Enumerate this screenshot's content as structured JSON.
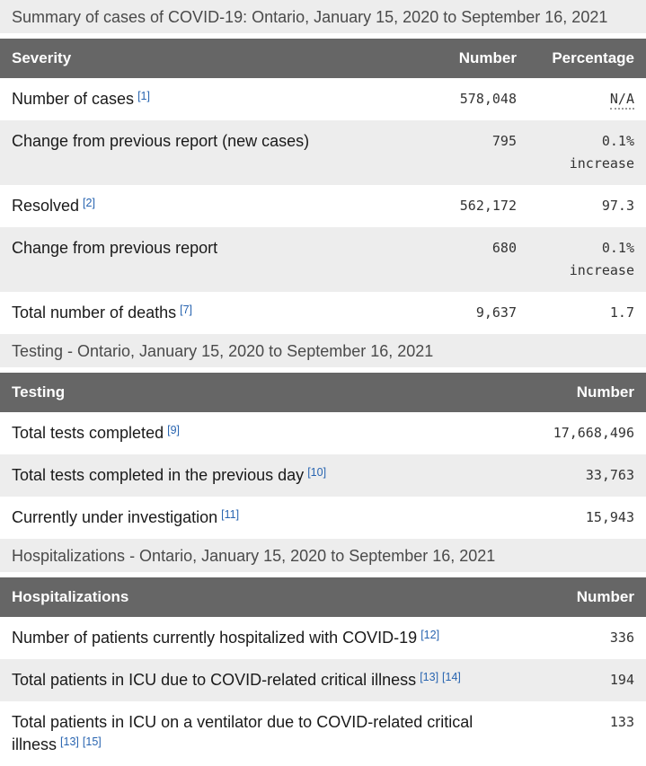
{
  "page": {
    "title": "Summary of cases of COVID-19"
  },
  "colors": {
    "header_bg": "#666666",
    "header_text": "#ffffff",
    "caption_bg": "#ededed",
    "zebra_row_bg": "#ededed",
    "link_blue": "#2864b0",
    "label_text": "#1a1a1a",
    "number_text": "#333333"
  },
  "tables": [
    {
      "caption": "Summary of cases of COVID-19: Ontario, January 15, 2020 to September 16, 2021",
      "columns": [
        "Severity",
        "Number",
        "Percentage"
      ],
      "rows": [
        {
          "label": "Number of cases",
          "footnotes": [
            "[1]"
          ],
          "number": "578,048",
          "percentage": "N/A",
          "percentage_abbr": true
        },
        {
          "label": "Change from previous report (new cases)",
          "footnotes": [],
          "number": "795",
          "percentage": "0.1% increase",
          "percentage_abbr": false
        },
        {
          "label": "Resolved",
          "footnotes": [
            "[2]"
          ],
          "number": "562,172",
          "percentage": "97.3",
          "percentage_abbr": false
        },
        {
          "label": "Change from previous report",
          "footnotes": [],
          "number": "680",
          "percentage": "0.1% increase",
          "percentage_abbr": false
        },
        {
          "label": "Total number of deaths",
          "footnotes": [
            "[7]"
          ],
          "number": "9,637",
          "percentage": "1.7",
          "percentage_abbr": false
        }
      ]
    },
    {
      "caption": "Testing - Ontario, January 15, 2020 to September 16, 2021",
      "columns": [
        "Testing",
        "Number"
      ],
      "rows": [
        {
          "label": "Total tests completed",
          "footnotes": [
            "[9]"
          ],
          "number": "17,668,496"
        },
        {
          "label": "Total tests completed in the previous day",
          "footnotes": [
            "[10]"
          ],
          "number": "33,763"
        },
        {
          "label": "Currently under investigation",
          "footnotes": [
            "[11]"
          ],
          "number": "15,943"
        }
      ]
    },
    {
      "caption": "Hospitalizations - Ontario, January 15, 2020 to September 16, 2021",
      "columns": [
        "Hospitalizations",
        "Number"
      ],
      "rows": [
        {
          "label": "Number of patients currently hospitalized with COVID-19",
          "footnotes": [
            "[12]"
          ],
          "number": "336"
        },
        {
          "label": "Total patients in ICU due to COVID-related critical illness",
          "footnotes": [
            "[13]",
            "[14]"
          ],
          "number": "194"
        },
        {
          "label": "Total patients in ICU on a ventilator due to COVID-related critical illness",
          "footnotes": [
            "[13]",
            "[15]"
          ],
          "number": "133"
        }
      ]
    }
  ]
}
